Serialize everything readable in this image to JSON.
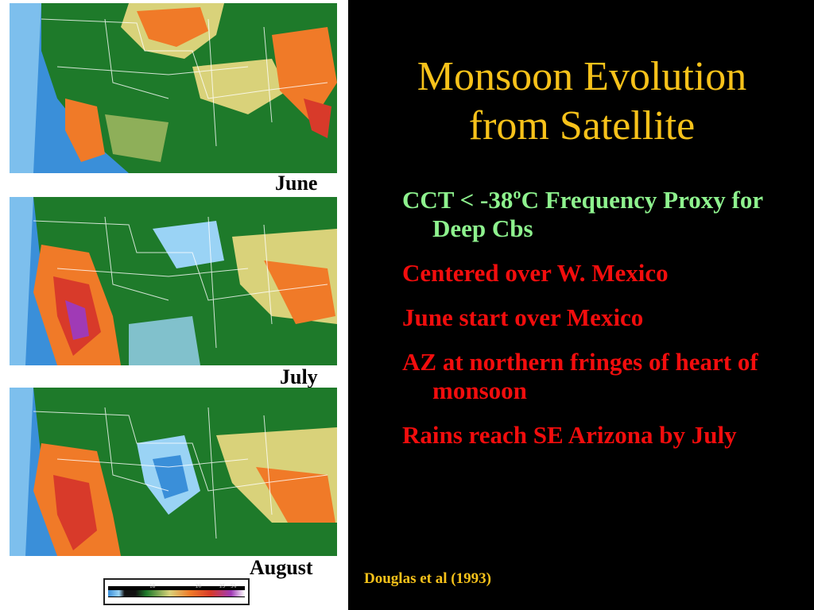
{
  "maps": {
    "labels": [
      "June",
      "July",
      "August"
    ]
  },
  "colorbar": {
    "tick_labels": [
      "18",
      "20",
      "25",
      "5%"
    ]
  },
  "title": {
    "line1": "Monsoon Evolution",
    "line2": "from Satellite"
  },
  "bullets": [
    {
      "text": "CCT < -38ºC Frequency Proxy for Deep Cbs",
      "color": "#8ef28e"
    },
    {
      "text": "Centered over W. Mexico",
      "color": "#f20d0d"
    },
    {
      "text": "June start over Mexico",
      "color": "#f20d0d"
    },
    {
      "text": "AZ at northern fringes of heart of monsoon",
      "color": "#f20d0d"
    },
    {
      "text": "Rains reach SE Arizona by July",
      "color": "#f20d0d"
    }
  ],
  "citation": "Douglas et al (1993)",
  "colors": {
    "background": "#000000",
    "title": "#f7c21a",
    "ocean": "#3a8fd9",
    "green": "#1e7a2a",
    "orange": "#f07a28"
  }
}
